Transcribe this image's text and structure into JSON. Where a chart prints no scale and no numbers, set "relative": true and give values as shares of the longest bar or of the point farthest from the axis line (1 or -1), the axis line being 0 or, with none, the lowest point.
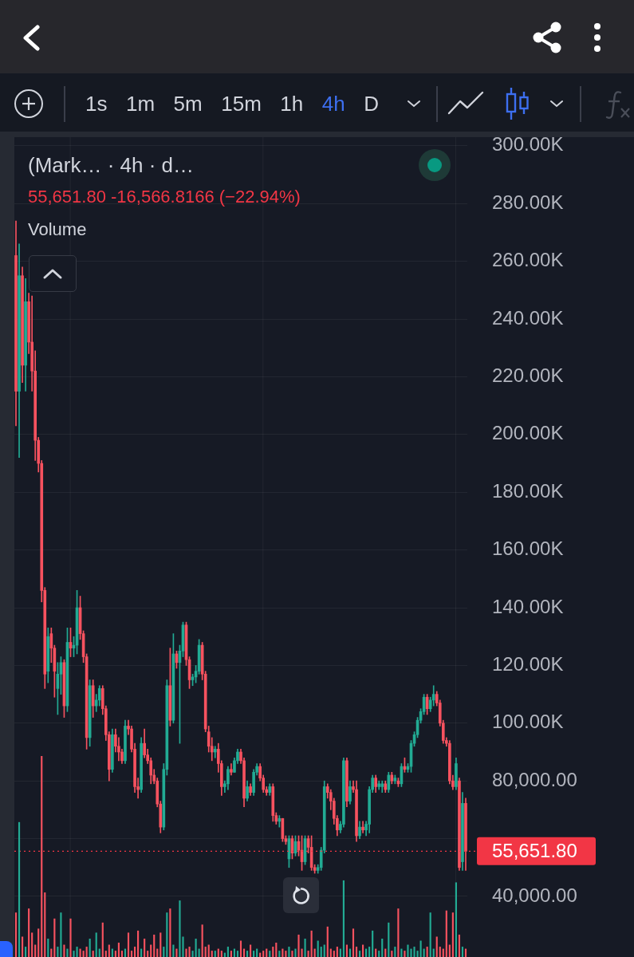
{
  "chart_data": [
    {
      "type": "candlestick",
      "title": "(Mark… · 4h · d…",
      "subtitle": "55,651.80 -16,566.8166 (−22.94%)",
      "annotations": [
        "1s",
        "1m",
        "5m",
        "15m",
        "1h",
        "4h",
        "D"
      ],
      "categories": [
        null,
        null,
        null,
        null,
        null,
        null,
        null,
        null,
        null,
        null,
        null,
        null,
        null,
        null,
        null,
        null,
        null,
        null,
        null,
        null,
        null,
        null,
        null,
        null,
        null,
        null,
        null,
        null,
        null,
        null,
        null,
        null,
        null,
        null,
        null,
        null,
        null,
        null,
        null,
        null,
        null,
        null,
        null,
        null,
        null,
        null,
        null,
        null,
        null,
        null,
        null,
        null,
        null,
        null,
        null,
        null,
        null,
        null,
        null,
        null,
        null,
        null,
        null,
        null,
        null,
        null,
        null,
        null,
        null,
        null,
        null,
        null,
        null,
        null,
        null,
        null,
        null,
        null,
        null,
        null,
        null,
        null,
        null,
        null,
        null,
        null,
        null,
        null,
        null,
        null,
        null,
        null,
        null,
        null,
        null,
        null,
        null,
        null,
        null,
        null,
        null,
        null,
        null,
        null,
        null,
        null,
        null,
        null,
        null,
        null,
        null,
        null,
        null,
        null,
        null,
        null,
        null,
        null,
        null,
        null,
        null,
        null,
        null,
        null,
        null,
        null,
        null,
        null,
        null,
        null,
        null,
        null,
        null,
        null,
        null,
        null,
        null,
        null,
        null,
        null,
        null
      ],
      "ohlc": [
        [
          262000,
          274000,
          203000,
          215000
        ],
        [
          215000,
          266000,
          192000,
          255000
        ],
        [
          255000,
          258000,
          218000,
          224000
        ],
        [
          224000,
          254000,
          215000,
          246000
        ],
        [
          246000,
          249000,
          228000,
          232000
        ],
        [
          232000,
          248000,
          215000,
          222000
        ],
        [
          222000,
          229000,
          191000,
          198000
        ],
        [
          198000,
          199000,
          187000,
          190000
        ],
        [
          190000,
          191000,
          142000,
          146000
        ],
        [
          146000,
          147000,
          112000,
          117000
        ],
        [
          118000,
          133000,
          114000,
          130000
        ],
        [
          131000,
          133000,
          121000,
          126000
        ],
        [
          126000,
          127000,
          109000,
          118000
        ],
        [
          112000,
          121000,
          103000,
          117000
        ],
        [
          117000,
          123000,
          110000,
          121000
        ],
        [
          121000,
          122000,
          102000,
          106000
        ],
        [
          106000,
          133000,
          104000,
          128000
        ],
        [
          128000,
          133000,
          123000,
          126000
        ],
        [
          126000,
          130000,
          123000,
          127000
        ],
        [
          127000,
          146000,
          124000,
          140000
        ],
        [
          140000,
          144000,
          129000,
          131000
        ],
        [
          131000,
          132000,
          121000,
          123000
        ],
        [
          123000,
          124000,
          91000,
          95000
        ],
        [
          95000,
          115000,
          92000,
          113000
        ],
        [
          113000,
          115000,
          102000,
          106000
        ],
        [
          106000,
          110000,
          104000,
          108000
        ],
        [
          108000,
          113000,
          106000,
          112000
        ],
        [
          112000,
          113000,
          103000,
          105000
        ],
        [
          105000,
          106000,
          94000,
          96000
        ],
        [
          96000,
          97000,
          80000,
          84000
        ],
        [
          84000,
          98000,
          83000,
          96000
        ],
        [
          96000,
          98000,
          90000,
          92000
        ],
        [
          92000,
          95000,
          87000,
          90000
        ],
        [
          90000,
          91000,
          86000,
          87000
        ],
        [
          87000,
          101000,
          86000,
          99000
        ],
        [
          99000,
          101000,
          96000,
          98000
        ],
        [
          98000,
          99000,
          90000,
          91000
        ],
        [
          91000,
          93000,
          76000,
          78000
        ],
        [
          78000,
          81000,
          74000,
          77000
        ],
        [
          77000,
          95000,
          76000,
          93000
        ],
        [
          93000,
          98000,
          88000,
          89000
        ],
        [
          89000,
          91000,
          86000,
          87000
        ],
        [
          87000,
          88000,
          79000,
          82000
        ],
        [
          82000,
          84000,
          79000,
          80000
        ],
        [
          80000,
          81000,
          71000,
          72000
        ],
        [
          72000,
          73000,
          62000,
          64000
        ],
        [
          64000,
          86000,
          63000,
          84000
        ],
        [
          84000,
          115000,
          82000,
          113000
        ],
        [
          113000,
          126000,
          99000,
          101000
        ],
        [
          101000,
          131000,
          100000,
          124000
        ],
        [
          124000,
          125000,
          119000,
          121000
        ],
        [
          121000,
          127000,
          93000,
          125000
        ],
        [
          125000,
          135000,
          123000,
          134000
        ],
        [
          134000,
          135000,
          120000,
          122000
        ],
        [
          122000,
          123000,
          112000,
          115000
        ],
        [
          115000,
          117000,
          113000,
          116000
        ],
        [
          116000,
          120000,
          114000,
          118000
        ],
        [
          118000,
          129000,
          117000,
          127000
        ],
        [
          127000,
          128000,
          115000,
          117000
        ],
        [
          117000,
          118000,
          97000,
          98000
        ],
        [
          97000,
          99000,
          90000,
          92000
        ],
        [
          92000,
          95000,
          87000,
          90000
        ],
        [
          90000,
          92000,
          88000,
          91000
        ],
        [
          91000,
          93000,
          83000,
          86000
        ],
        [
          86000,
          87000,
          75000,
          78000
        ],
        [
          78000,
          80000,
          76000,
          79000
        ],
        [
          79000,
          85000,
          77000,
          84000
        ],
        [
          84000,
          86000,
          82000,
          83000
        ],
        [
          83000,
          88000,
          83000,
          87000
        ],
        [
          87000,
          91000,
          86000,
          90000
        ],
        [
          90000,
          91000,
          86000,
          87000
        ],
        [
          87000,
          88000,
          71000,
          74000
        ],
        [
          74000,
          80000,
          73000,
          78000
        ],
        [
          78000,
          79000,
          75000,
          76000
        ],
        [
          76000,
          84000,
          75000,
          83000
        ],
        [
          83000,
          86000,
          82000,
          85000
        ],
        [
          85000,
          86000,
          80000,
          81000
        ],
        [
          81000,
          82000,
          76000,
          77000
        ],
        [
          77000,
          78000,
          75000,
          76000
        ],
        [
          76000,
          79000,
          75000,
          78000
        ],
        [
          78000,
          79000,
          66000,
          68000
        ],
        [
          68000,
          69000,
          65000,
          66000
        ],
        [
          66000,
          68000,
          64000,
          67000
        ],
        [
          67000,
          67000,
          59000,
          60000
        ],
        [
          60000,
          61000,
          58000,
          59000
        ],
        [
          53000,
          61000,
          50000,
          60000
        ],
        [
          60000,
          61000,
          53000,
          55000
        ],
        [
          55000,
          61000,
          54000,
          59000
        ],
        [
          59000,
          61000,
          54000,
          56000
        ],
        [
          56000,
          61000,
          49000,
          52000
        ],
        [
          52000,
          61000,
          51000,
          60000
        ],
        [
          60000,
          61000,
          55000,
          57000
        ],
        [
          57000,
          61000,
          49000,
          50000
        ],
        [
          50000,
          51000,
          48000,
          49000
        ],
        [
          49000,
          51000,
          48000,
          50000
        ],
        [
          50000,
          57000,
          49000,
          56000
        ],
        [
          56000,
          80000,
          55000,
          78000
        ],
        [
          78000,
          79000,
          74000,
          76000
        ],
        [
          76000,
          77000,
          70000,
          73000
        ],
        [
          73000,
          74000,
          65000,
          67000
        ],
        [
          67000,
          68000,
          61000,
          63000
        ],
        [
          63000,
          66000,
          62000,
          65000
        ],
        [
          65000,
          88000,
          64000,
          87000
        ],
        [
          87000,
          88000,
          71000,
          73000
        ],
        [
          73000,
          80000,
          72000,
          78000
        ],
        [
          78000,
          80000,
          76000,
          77000
        ],
        [
          77000,
          80000,
          59000,
          61000
        ],
        [
          61000,
          66000,
          60000,
          64000
        ],
        [
          64000,
          66000,
          62000,
          63000
        ],
        [
          63000,
          66000,
          61000,
          65000
        ],
        [
          65000,
          78000,
          62000,
          77000
        ],
        [
          77000,
          82000,
          76000,
          81000
        ],
        [
          81000,
          82000,
          76000,
          78000
        ],
        [
          78000,
          80000,
          77000,
          79000
        ],
        [
          78000,
          80000,
          76000,
          79000
        ],
        [
          79000,
          80000,
          76000,
          77000
        ],
        [
          77000,
          83000,
          76000,
          82000
        ],
        [
          82000,
          83000,
          79000,
          80000
        ],
        [
          80000,
          82000,
          79000,
          81000
        ],
        [
          80000,
          81000,
          78000,
          79000
        ],
        [
          79000,
          86000,
          78000,
          85000
        ],
        [
          85000,
          88000,
          83000,
          84000
        ],
        [
          84000,
          86000,
          83000,
          85000
        ],
        [
          85000,
          94000,
          83000,
          93000
        ],
        [
          93000,
          97000,
          92000,
          96000
        ],
        [
          96000,
          102000,
          95000,
          101000
        ],
        [
          101000,
          105000,
          100000,
          104000
        ],
        [
          104000,
          110000,
          103000,
          109000
        ],
        [
          109000,
          110000,
          103000,
          105000
        ],
        [
          105000,
          109000,
          104000,
          108000
        ],
        [
          108000,
          113000,
          106000,
          110000
        ],
        [
          110000,
          111000,
          106000,
          107000
        ],
        [
          107000,
          108000,
          99000,
          100000
        ],
        [
          100000,
          101000,
          93000,
          94000
        ],
        [
          94000,
          95000,
          92000,
          93000
        ],
        [
          93000,
          94000,
          79000,
          80000
        ],
        [
          80000,
          82000,
          77000,
          78000
        ],
        [
          78000,
          88000,
          77000,
          86000
        ],
        [
          80000,
          81000,
          49000,
          50000
        ],
        [
          52000,
          76000,
          49000,
          72219
        ],
        [
          72219,
          74000,
          49000,
          55651.8
        ]
      ],
      "colors": [
        "#f7525f",
        "#22ab94",
        "#f7525f",
        "#22ab94",
        "#f7525f",
        "#f7525f",
        "#f7525f",
        "#f7525f",
        "#f7525f",
        "#f7525f",
        "#22ab94",
        "#f7525f",
        "#f7525f",
        "#22ab94",
        "#22ab94",
        "#f7525f",
        "#22ab94",
        "#f7525f",
        "#22ab94",
        "#22ab94",
        "#f7525f",
        "#f7525f",
        "#f7525f",
        "#22ab94",
        "#f7525f",
        "#22ab94",
        "#22ab94",
        "#f7525f",
        "#f7525f",
        "#f7525f",
        "#22ab94",
        "#f7525f",
        "#f7525f",
        "#f7525f",
        "#22ab94",
        "#f7525f",
        "#f7525f",
        "#f7525f",
        "#f7525f",
        "#22ab94",
        "#f7525f",
        "#f7525f",
        "#f7525f",
        "#f7525f",
        "#f7525f",
        "#f7525f",
        "#22ab94",
        "#22ab94",
        "#f7525f",
        "#22ab94",
        "#f7525f",
        "#22ab94",
        "#22ab94",
        "#f7525f",
        "#f7525f",
        "#22ab94",
        "#22ab94",
        "#22ab94",
        "#f7525f",
        "#f7525f",
        "#f7525f",
        "#f7525f",
        "#22ab94",
        "#f7525f",
        "#f7525f",
        "#22ab94",
        "#22ab94",
        "#f7525f",
        "#22ab94",
        "#22ab94",
        "#f7525f",
        "#f7525f",
        "#22ab94",
        "#f7525f",
        "#22ab94",
        "#22ab94",
        "#f7525f",
        "#f7525f",
        "#f7525f",
        "#22ab94",
        "#f7525f",
        "#f7525f",
        "#22ab94",
        "#f7525f",
        "#f7525f",
        "#22ab94",
        "#f7525f",
        "#22ab94",
        "#f7525f",
        "#f7525f",
        "#22ab94",
        "#f7525f",
        "#f7525f",
        "#f7525f",
        "#22ab94",
        "#22ab94",
        "#22ab94",
        "#f7525f",
        "#f7525f",
        "#f7525f",
        "#f7525f",
        "#22ab94",
        "#22ab94",
        "#f7525f",
        "#22ab94",
        "#f7525f",
        "#f7525f",
        "#22ab94",
        "#f7525f",
        "#22ab94",
        "#22ab94",
        "#22ab94",
        "#f7525f",
        "#22ab94",
        "#22ab94",
        "#f7525f",
        "#22ab94",
        "#f7525f",
        "#22ab94",
        "#f7525f",
        "#22ab94",
        "#f7525f",
        "#22ab94",
        "#22ab94",
        "#22ab94",
        "#22ab94",
        "#22ab94",
        "#22ab94",
        "#f7525f",
        "#22ab94",
        "#22ab94",
        "#f7525f",
        "#f7525f",
        "#f7525f",
        "#f7525f",
        "#f7525f",
        "#f7525f",
        "#22ab94",
        "#f7525f",
        "#22ab94",
        "#f7525f"
      ],
      "ylim": [
        19000,
        303000
      ],
      "yticks": [
        {
          "value": 40000,
          "label": "40,000.00"
        },
        {
          "value": 60000,
          "label": null
        },
        {
          "value": 80000,
          "label": "80,000.00"
        },
        {
          "value": 100000,
          "label": "100.00K"
        },
        {
          "value": 120000,
          "label": "120.00K"
        },
        {
          "value": 140000,
          "label": "140.00K"
        },
        {
          "value": 160000,
          "label": "160.00K"
        },
        {
          "value": 180000,
          "label": "180.00K"
        },
        {
          "value": 200000,
          "label": "200.00K"
        },
        {
          "value": 220000,
          "label": "220.00K"
        },
        {
          "value": 240000,
          "label": "240.00K"
        },
        {
          "value": 260000,
          "label": "260.00K"
        },
        {
          "value": 280000,
          "label": "280.00K"
        },
        {
          "value": 300000,
          "label": "300.00K"
        }
      ],
      "grid": true,
      "tick_labels": "y",
      "ref_lines": [
        {
          "axis": "y",
          "value": 55651.8,
          "label": "55,651.80",
          "color": "#f23645",
          "line_style": "dotted"
        }
      ]
    },
    {
      "type": "bar",
      "relative": true,
      "annotations": [
        "Volume"
      ],
      "tick_labels": false,
      "categories": [
        null,
        null,
        null,
        null,
        null,
        null,
        null,
        null,
        null,
        null,
        null,
        null,
        null,
        null,
        null,
        null,
        null,
        null,
        null,
        null,
        null,
        null,
        null,
        null,
        null,
        null,
        null,
        null,
        null,
        null,
        null,
        null,
        null,
        null,
        null,
        null,
        null,
        null,
        null,
        null,
        null,
        null,
        null,
        null,
        null,
        null,
        null,
        null,
        null,
        null,
        null,
        null,
        null,
        null,
        null,
        null,
        null,
        null,
        null,
        null,
        null,
        null,
        null,
        null,
        null,
        null,
        null,
        null,
        null,
        null,
        null,
        null,
        null,
        null,
        null,
        null,
        null,
        null,
        null,
        null,
        null,
        null,
        null,
        null,
        null,
        null,
        null,
        null,
        null,
        null,
        null,
        null,
        null,
        null,
        null,
        null,
        null,
        null,
        null,
        null,
        null,
        null,
        null,
        null,
        null,
        null,
        null,
        null,
        null,
        null,
        null,
        null,
        null,
        null,
        null,
        null,
        null,
        null,
        null,
        null,
        null,
        null,
        null,
        null,
        null,
        null,
        null,
        null,
        null,
        null,
        null,
        null,
        null,
        null,
        null,
        null,
        null,
        null,
        null,
        null,
        null
      ],
      "values": [
        0.22,
        0.67,
        0.1,
        0.05,
        0.24,
        0.12,
        0.06,
        0.14,
        1,
        0.32,
        0.09,
        0.04,
        0.19,
        0.05,
        0.22,
        0.06,
        0.04,
        0.19,
        0.03,
        0.05,
        0.04,
        0.03,
        0.05,
        0.09,
        0.03,
        0.12,
        0.04,
        0.17,
        0.03,
        0.06,
        0.04,
        0.03,
        0.07,
        0.03,
        0.04,
        0.12,
        0.03,
        0.05,
        0.13,
        0.04,
        0.09,
        0.03,
        0.06,
        0.11,
        0.04,
        0.12,
        0.05,
        0.22,
        0.24,
        0.06,
        0.04,
        0.28,
        0.1,
        0.04,
        0.05,
        0.03,
        0.09,
        0.04,
        0.16,
        0.05,
        0.06,
        0.03,
        0.03,
        0.04,
        0.03,
        0.02,
        0.05,
        0.03,
        0.04,
        0.03,
        0.08,
        0.04,
        0.03,
        0.06,
        0.03,
        0.04,
        0.02,
        0.03,
        0.04,
        0.03,
        0.05,
        0.07,
        0.03,
        0.04,
        0.03,
        0.05,
        0.03,
        0.04,
        0.11,
        0.04,
        0.09,
        0.03,
        0.13,
        0.04,
        0.08,
        0.05,
        0.06,
        0.15,
        0.04,
        0.03,
        0.05,
        0.04,
        0.38,
        0.06,
        0.04,
        0.14,
        0.05,
        0.03,
        0.06,
        0.04,
        0.05,
        0.13,
        0.04,
        0.03,
        0.09,
        0.04,
        0.17,
        0.03,
        0.05,
        0.24,
        0.04,
        0.03,
        0.06,
        0.04,
        0.05,
        0.03,
        0.08,
        0.04,
        0.05,
        0.22,
        0.04,
        0.1,
        0.05,
        0.04,
        0.23,
        0.06,
        0.22,
        0.37,
        0.11,
        0.05,
        0.04
      ],
      "colors": [
        "#f7525f",
        "#22ab94",
        "#f7525f",
        "#22ab94",
        "#f7525f",
        "#f7525f",
        "#f7525f",
        "#f7525f",
        "#f7525f",
        "#f7525f",
        "#22ab94",
        "#f7525f",
        "#f7525f",
        "#22ab94",
        "#22ab94",
        "#f7525f",
        "#22ab94",
        "#f7525f",
        "#22ab94",
        "#22ab94",
        "#f7525f",
        "#f7525f",
        "#f7525f",
        "#22ab94",
        "#f7525f",
        "#22ab94",
        "#22ab94",
        "#f7525f",
        "#f7525f",
        "#f7525f",
        "#22ab94",
        "#f7525f",
        "#f7525f",
        "#f7525f",
        "#22ab94",
        "#f7525f",
        "#f7525f",
        "#f7525f",
        "#f7525f",
        "#22ab94",
        "#f7525f",
        "#f7525f",
        "#f7525f",
        "#f7525f",
        "#f7525f",
        "#f7525f",
        "#22ab94",
        "#22ab94",
        "#f7525f",
        "#22ab94",
        "#f7525f",
        "#22ab94",
        "#22ab94",
        "#f7525f",
        "#f7525f",
        "#22ab94",
        "#22ab94",
        "#22ab94",
        "#f7525f",
        "#f7525f",
        "#f7525f",
        "#f7525f",
        "#22ab94",
        "#f7525f",
        "#f7525f",
        "#22ab94",
        "#22ab94",
        "#f7525f",
        "#22ab94",
        "#22ab94",
        "#f7525f",
        "#f7525f",
        "#22ab94",
        "#f7525f",
        "#22ab94",
        "#22ab94",
        "#f7525f",
        "#f7525f",
        "#f7525f",
        "#22ab94",
        "#f7525f",
        "#f7525f",
        "#22ab94",
        "#f7525f",
        "#f7525f",
        "#22ab94",
        "#f7525f",
        "#22ab94",
        "#f7525f",
        "#f7525f",
        "#22ab94",
        "#f7525f",
        "#f7525f",
        "#f7525f",
        "#22ab94",
        "#22ab94",
        "#22ab94",
        "#f7525f",
        "#f7525f",
        "#f7525f",
        "#f7525f",
        "#22ab94",
        "#22ab94",
        "#f7525f",
        "#22ab94",
        "#f7525f",
        "#f7525f",
        "#22ab94",
        "#f7525f",
        "#22ab94",
        "#22ab94",
        "#22ab94",
        "#f7525f",
        "#22ab94",
        "#22ab94",
        "#f7525f",
        "#22ab94",
        "#f7525f",
        "#22ab94",
        "#f7525f",
        "#22ab94",
        "#f7525f",
        "#22ab94",
        "#22ab94",
        "#22ab94",
        "#22ab94",
        "#22ab94",
        "#22ab94",
        "#f7525f",
        "#22ab94",
        "#22ab94",
        "#f7525f",
        "#f7525f",
        "#f7525f",
        "#f7525f",
        "#f7525f",
        "#f7525f",
        "#22ab94",
        "#f7525f",
        "#22ab94",
        "#f7525f"
      ]
    }
  ]
}
